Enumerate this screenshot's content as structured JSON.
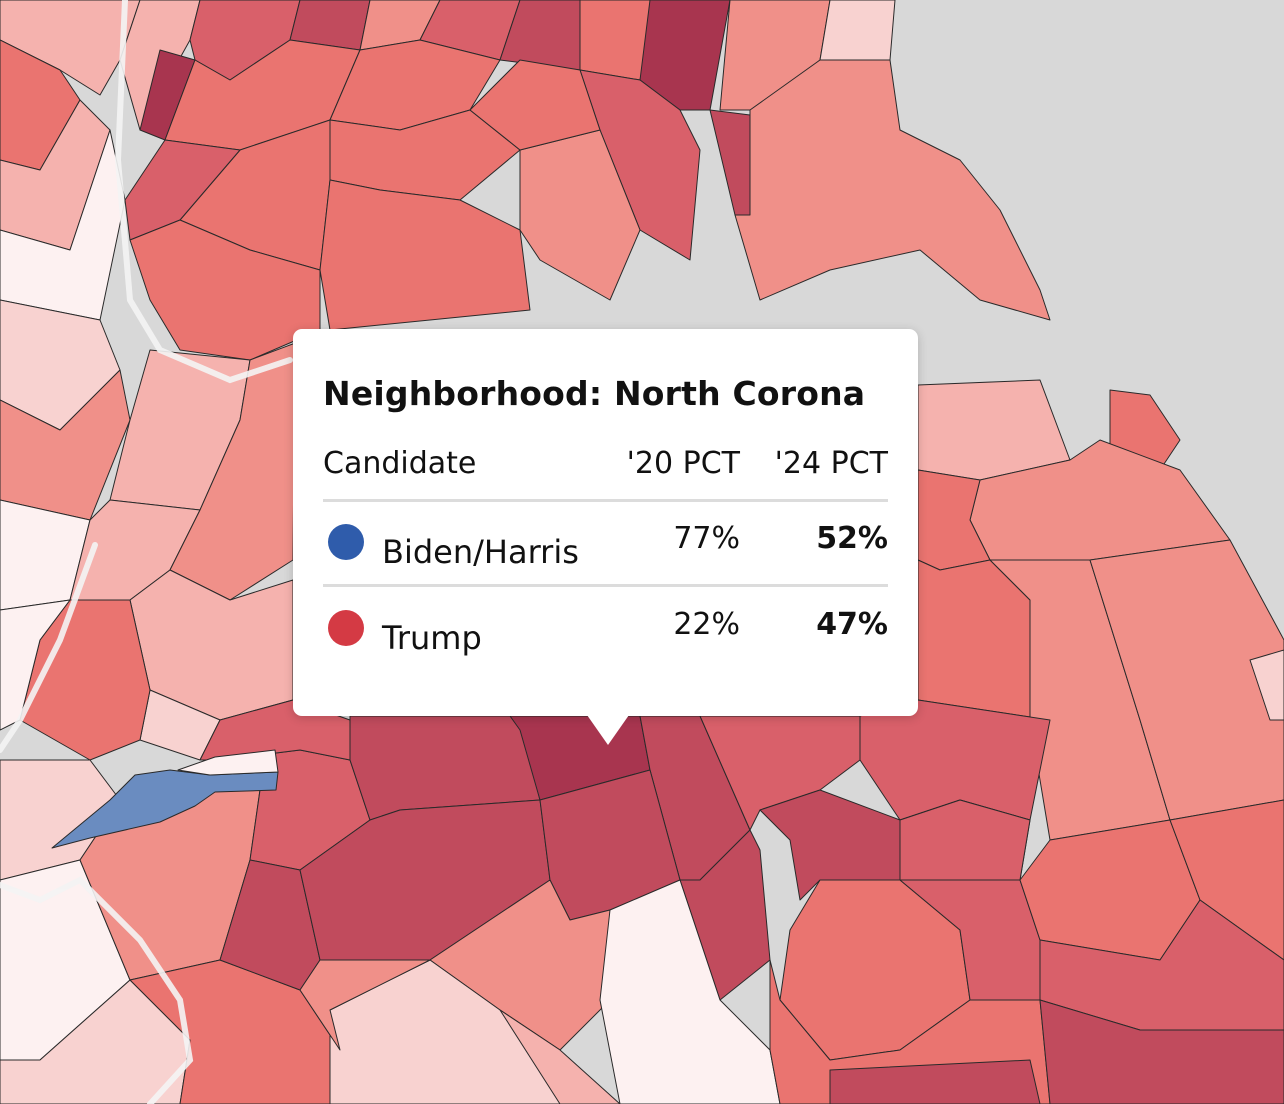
{
  "tooltip": {
    "title": "Neighborhood: North Corona",
    "headers": {
      "candidate": "Candidate",
      "pct20": "'20 PCT",
      "pct24": "'24 PCT"
    },
    "rows": [
      {
        "candidate": "Biden/Harris",
        "dot_color": "#2f5cab",
        "pct20": "77%",
        "pct24": "52%"
      },
      {
        "candidate": "Trump",
        "dot_color": "#d43a44",
        "pct20": "22%",
        "pct24": "47%"
      }
    ]
  },
  "colors": {
    "background_water": "#d8d8d8",
    "region_border": "#2a2a2a",
    "dem_blue": "#6a8cc0",
    "rep_scale": [
      "#fdf1f1",
      "#f8d2d0",
      "#f5b2ae",
      "#f09089",
      "#ea7470",
      "#d9606a",
      "#c14b5d",
      "#a8354f"
    ]
  }
}
